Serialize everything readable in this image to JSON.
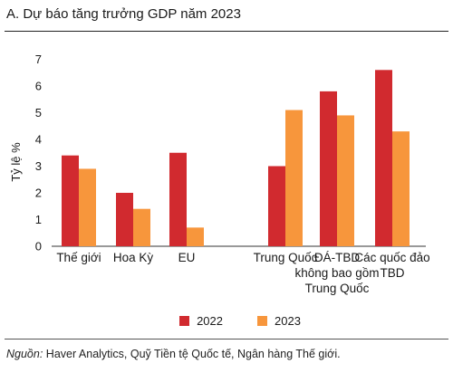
{
  "header": {
    "title": "A. Dự báo tăng trưởng GDP năm 2023"
  },
  "chart_data": {
    "type": "bar",
    "title": "A. Dự báo tăng trưởng GDP năm 2023",
    "ylabel": "Tỷ lệ %",
    "xlabel": "",
    "ylim": [
      0,
      7
    ],
    "yticks": [
      0,
      1,
      2,
      3,
      4,
      5,
      6,
      7
    ],
    "grid": false,
    "legend_position": "bottom",
    "categories": [
      [
        "Thế giới"
      ],
      [
        "Hoa Kỳ"
      ],
      [
        "EU"
      ],
      [
        "Trung Quốc"
      ],
      [
        "ĐÁ-TBD",
        "không bao gồm",
        "Trung Quốc"
      ],
      [
        "Các quốc đảo",
        "TBD"
      ]
    ],
    "series": [
      {
        "name": "2022",
        "color": "#d12a2f",
        "values": [
          3.4,
          2.0,
          3.5,
          3.0,
          5.8,
          6.6
        ]
      },
      {
        "name": "2023",
        "color": "#f7963c",
        "values": [
          2.9,
          1.4,
          0.7,
          5.1,
          4.9,
          4.3
        ]
      }
    ]
  },
  "source": {
    "label": "Nguồn:",
    "text": " Haver Analytics, Quỹ Tiền tệ Quốc tế, Ngân hàng Thế giới."
  }
}
